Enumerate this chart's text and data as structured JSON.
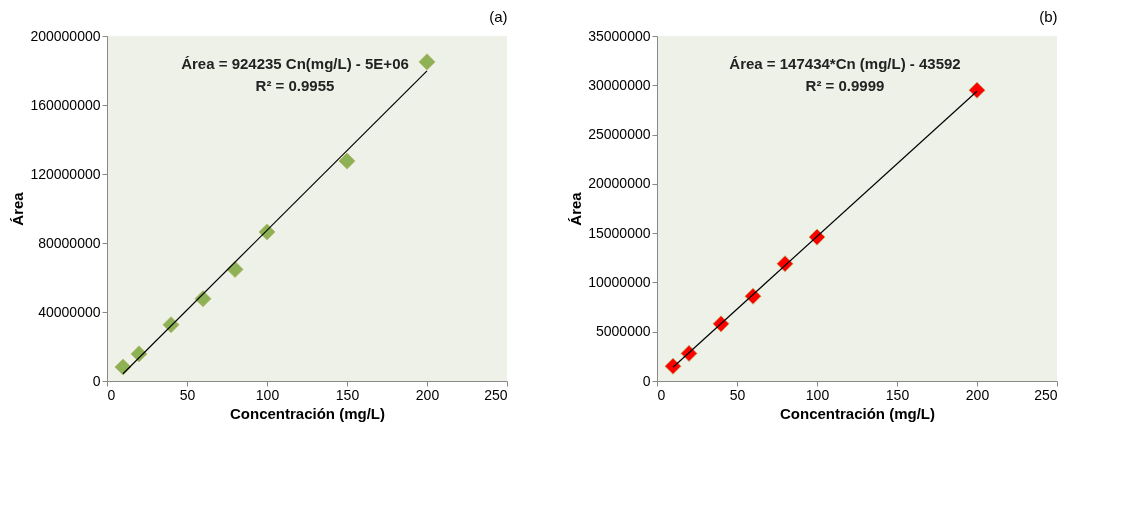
{
  "chart_data": [
    {
      "type": "scatter",
      "title": "(a)",
      "xlabel": "Concentración (mg/L)",
      "ylabel": "Área",
      "marker": "diamond",
      "xlim": [
        0,
        250
      ],
      "xticks": [
        0,
        50,
        100,
        150,
        200,
        250
      ],
      "ylim": [
        0,
        200000000
      ],
      "yticks": [
        0,
        40000000,
        80000000,
        120000000,
        160000000,
        200000000
      ],
      "annotations": [
        "Área = 924235 Cn(mg/L) - 5E+06",
        "R² = 0.9955"
      ],
      "series": [
        {
          "color": "#8db255",
          "x": [
            10,
            20,
            40,
            60,
            80,
            100,
            150,
            200
          ],
          "values": [
            8100000,
            15700000,
            32600000,
            47700000,
            64700000,
            86400000,
            127500000,
            185000000
          ]
        },
        {
          "type": "line",
          "color": "#000000",
          "marker": "none",
          "x": [
            10,
            200
          ],
          "values": [
            4200000,
            179800000
          ]
        }
      ]
    },
    {
      "type": "scatter",
      "title": "(b)",
      "xlabel": "Concentración (mg/L)",
      "ylabel": "Área",
      "marker": "diamond",
      "xlim": [
        0,
        250
      ],
      "xticks": [
        0,
        50,
        100,
        150,
        200,
        250
      ],
      "ylim": [
        0,
        35000000
      ],
      "yticks": [
        0,
        5000000,
        10000000,
        15000000,
        20000000,
        25000000,
        30000000,
        35000000
      ],
      "annotations": [
        "Área = 147434*Cn (mg/L) - 43592",
        "R² = 0.9999"
      ],
      "series": [
        {
          "color": "#ff0000",
          "x": [
            10,
            20,
            40,
            60,
            80,
            100,
            200
          ],
          "values": [
            1500000,
            2800000,
            5800000,
            8600000,
            11900000,
            14600000,
            29500000
          ]
        },
        {
          "type": "line",
          "color": "#000000",
          "marker": "none",
          "x": [
            10,
            200
          ],
          "values": [
            1400000,
            29400000
          ]
        }
      ]
    }
  ]
}
